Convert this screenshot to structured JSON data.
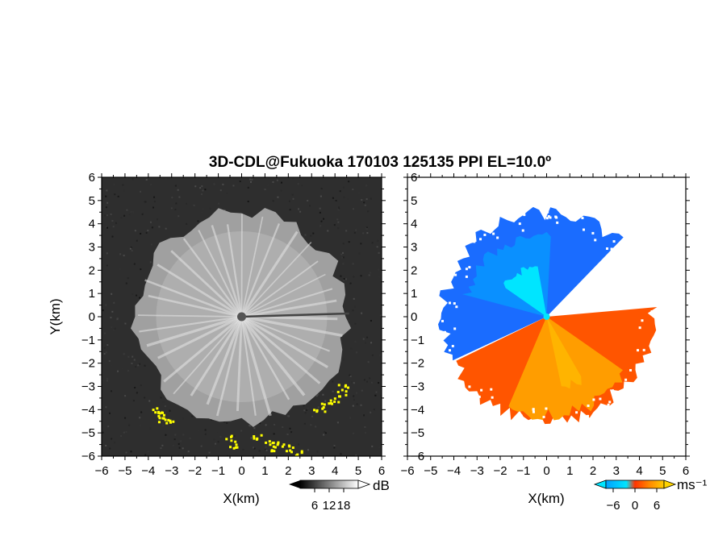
{
  "figure": {
    "title": "3D-CDL@Fukuoka 170103 125135 PPI EL=10.0º"
  },
  "chart_data": [
    {
      "type": "heatmap",
      "name": "reflectivity-ppi",
      "xlabel": "X(km)",
      "ylabel": "Y(km)",
      "xlim": [
        -6,
        6
      ],
      "ylim": [
        -6,
        6
      ],
      "xticks": [
        "-6",
        "-5",
        "-4",
        "-3",
        "-2",
        "-1",
        "0",
        "1",
        "2",
        "3",
        "4",
        "5",
        "6"
      ],
      "yticks": [
        "-6",
        "-5",
        "-4",
        "-3",
        "-2",
        "-1",
        "0",
        "1",
        "2",
        "3",
        "4",
        "5",
        "6"
      ],
      "colorbar": {
        "unit": "dB",
        "ticks": [
          "6",
          "12",
          "18"
        ],
        "values": [
          6,
          12,
          18
        ],
        "range": [
          0,
          24
        ]
      },
      "colors": {
        "background": "#2e2e2e",
        "echo": "#bdbdbd",
        "strong": "#ffff00",
        "center": "#555555"
      },
      "echo_radius_km": 4.7,
      "strong_echo_points": [
        [
          -3.6,
          -4.2
        ],
        [
          -3.4,
          -4.35
        ],
        [
          -3.8,
          -4.0
        ],
        [
          -3.2,
          -4.4
        ],
        [
          3.9,
          -3.6
        ],
        [
          4.2,
          -3.3
        ],
        [
          3.6,
          -3.8
        ],
        [
          3.3,
          -3.9
        ],
        [
          4.3,
          -3.0
        ],
        [
          -0.5,
          -5.2
        ],
        [
          -0.4,
          -5.5
        ],
        [
          1.4,
          -5.6
        ],
        [
          1.7,
          -5.4
        ],
        [
          2.0,
          -5.6
        ],
        [
          0.6,
          -5.1
        ],
        [
          2.3,
          -5.8
        ],
        [
          1.1,
          -5.45
        ]
      ]
    },
    {
      "type": "heatmap",
      "name": "doppler-velocity-ppi",
      "xlabel": "X(km)",
      "ylabel": "",
      "xlim": [
        -6,
        6
      ],
      "ylim": [
        -6,
        6
      ],
      "xticks": [
        "-6",
        "-5",
        "-4",
        "-3",
        "-2",
        "-1",
        "0",
        "1",
        "2",
        "3",
        "4",
        "5",
        "6"
      ],
      "yticks": [
        "-6",
        "-5",
        "-4",
        "-3",
        "-2",
        "-1",
        "0",
        "1",
        "2",
        "3",
        "4",
        "5",
        "6"
      ],
      "colorbar": {
        "unit": "ms⁻¹",
        "ticks": [
          "-6",
          "0",
          "6"
        ],
        "values": [
          -6,
          0,
          6
        ],
        "range": [
          -8,
          8
        ]
      },
      "colors": {
        "negative": "#1a6cff",
        "near_zero_neg": "#00e5ff",
        "near_zero_pos": "#ffff66",
        "positive": "#ff5500",
        "far_positive": "#ff9d00"
      },
      "zero_velocity_axis_deg": 155,
      "echo_radius_km": 4.6
    }
  ]
}
